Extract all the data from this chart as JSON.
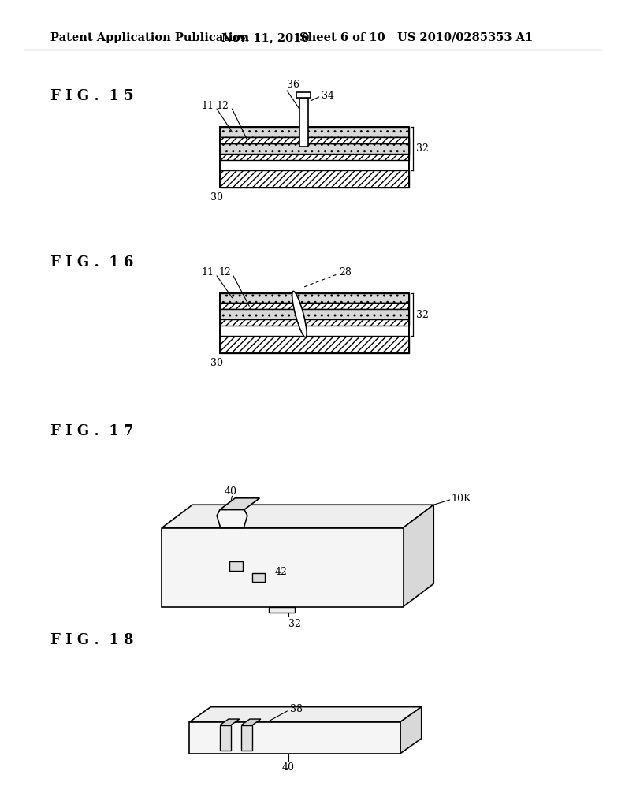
{
  "bg_color": "#ffffff",
  "header_text": "Patent Application Publication",
  "header_date": "Nov. 11, 2010",
  "header_sheet": "Sheet 6 of 10",
  "header_patent": "US 2010/0285353 A1",
  "fig15_label": "F I G .  1 5",
  "fig16_label": "F I G .  1 6",
  "fig17_label": "F I G .  1 7",
  "fig18_label": "F I G .  1 8",
  "black": "#000000",
  "gray_light": "#c8c8c8",
  "gray_med": "#b0b0b0",
  "white": "#ffffff"
}
